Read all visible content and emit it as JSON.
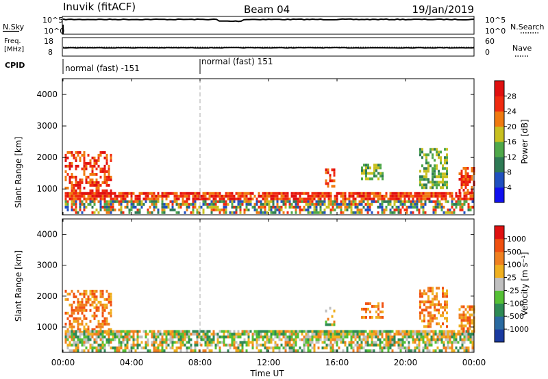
{
  "header": {
    "station": "Inuvik (fitACF)",
    "beam": "Beam 04",
    "date": "19/Jan/2019"
  },
  "status_panels": {
    "nsky_label": "N.Sky",
    "nsearch_label": "N.Search",
    "freq_label_1": "Freq.",
    "freq_label_2": "[MHz]",
    "nave_label": "Nave",
    "cpid_label": "CPID",
    "noise_ticks_left": [
      "10^5",
      "10^0"
    ],
    "noise_ticks_right": [
      "10^5",
      "10^0"
    ],
    "freq_ticks": [
      "18",
      "8"
    ],
    "nave_ticks": [
      "60",
      "0"
    ],
    "cpid_segments": [
      {
        "start_hour": 0,
        "label": "normal (fast) -151"
      },
      {
        "start_hour": 8,
        "label": "normal (fast) 151"
      }
    ],
    "nsky_level": 0.83,
    "freq_level": 0.45
  },
  "chart_data": [
    {
      "type": "heatmap",
      "name": "power",
      "ylabel": "Slant Range [km]",
      "yticks": [
        1000,
        2000,
        3000,
        4000
      ],
      "ylim": [
        180,
        4500
      ],
      "xlim": [
        0,
        24
      ],
      "colorbar": {
        "label": "Power [dB]",
        "ticks": [
          "4",
          "8",
          "12",
          "16",
          "20",
          "24",
          "28"
        ],
        "colors": [
          "#1010f0",
          "#2050c0",
          "#2e7a55",
          "#4fa84a",
          "#c8c020",
          "#f07a10",
          "#f02a10",
          "#e01010"
        ]
      }
    },
    {
      "type": "heatmap",
      "name": "velocity",
      "ylabel": "Slant Range [km]",
      "yticks": [
        1000,
        2000,
        3000,
        4000
      ],
      "ylim": [
        180,
        4500
      ],
      "xlim": [
        0,
        24
      ],
      "xlabel": "Time UT",
      "xticks": [
        "00:00",
        "04:00",
        "08:00",
        "12:00",
        "16:00",
        "20:00",
        "00:00"
      ],
      "colorbar": {
        "label": "Velocity [m s⁻¹]",
        "ticks": [
          "1000",
          "500",
          "100",
          "25",
          "-25",
          "-100",
          "-500",
          "-1000"
        ],
        "colors": [
          "#1a3aa0",
          "#2a6aa0",
          "#2e8a55",
          "#55c035",
          "#c0c0c0",
          "#f0b020",
          "#f08020",
          "#f05010",
          "#e01010"
        ]
      }
    }
  ],
  "scatter_regions": [
    {
      "t0": 0.1,
      "t1": 2.9,
      "r0": 800,
      "r1": 2200,
      "power": "high",
      "velocity": "away"
    },
    {
      "t0": 0.1,
      "t1": 24,
      "r0": 180,
      "r1": 900,
      "power": "mixed",
      "velocity": "mixed"
    },
    {
      "t0": 15.3,
      "t1": 15.9,
      "r0": 1000,
      "r1": 1650,
      "power": "high",
      "velocity": "mixed"
    },
    {
      "t0": 17.4,
      "t1": 18.7,
      "r0": 1300,
      "r1": 1800,
      "power": "mid",
      "velocity": "away"
    },
    {
      "t0": 20.8,
      "t1": 22.5,
      "r0": 1000,
      "r1": 2300,
      "power": "mid",
      "velocity": "away"
    },
    {
      "t0": 23.1,
      "t1": 24,
      "r0": 800,
      "r1": 1700,
      "power": "high",
      "velocity": "away"
    }
  ]
}
